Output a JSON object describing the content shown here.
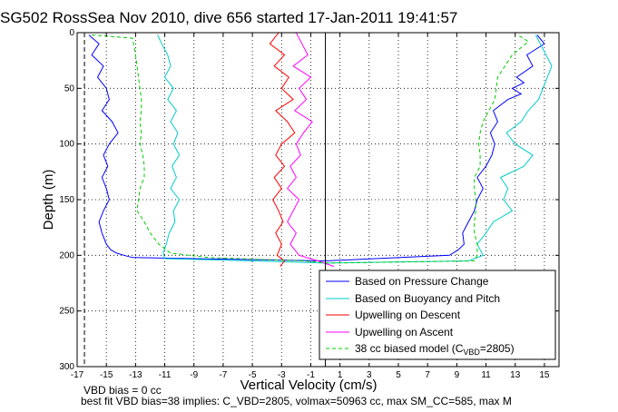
{
  "chart_data": {
    "type": "line",
    "title": "SG502 RossSea Nov 2010, dive 656 started 17-Jan-2011 19:41:57",
    "xlabel": "Vertical Velocity (cm/s)",
    "ylabel": "Depth (m)",
    "xlim": [
      -17,
      16
    ],
    "ylim": [
      300,
      0
    ],
    "x_ticks": [
      -17,
      -15,
      -13,
      -11,
      -9,
      -7,
      -5,
      -3,
      -1,
      1,
      3,
      5,
      7,
      9,
      11,
      13,
      15
    ],
    "y_ticks": [
      0,
      50,
      100,
      150,
      200,
      250,
      300
    ],
    "x_tick_labels": [
      "-17",
      "-15",
      "-13",
      "-11",
      "-9",
      "-7",
      "-5",
      "-3",
      "-1",
      "1",
      "3",
      "5",
      "7",
      "9",
      "11",
      "13",
      "15"
    ],
    "y_tick_labels": [
      "0",
      "50",
      "100",
      "150",
      "200",
      "250",
      "300"
    ],
    "grid": true,
    "legend_position": "bottom-right",
    "legend": [
      "Based on Pressure Change",
      "Based on Buoyancy and Pitch",
      "Upwelling on Descent",
      "Upwelling on Ascent",
      "38 cc biased model (C",
      "VBD",
      "=2805)"
    ],
    "series": [
      {
        "color": "#0000ff",
        "x": [
          -16.2,
          -15.5,
          -16.0,
          -15.2,
          -15.6,
          -15.0,
          -14.8,
          -15.3,
          -14.6,
          -14.2,
          -14.8,
          -15.2,
          -14.9,
          -15.3,
          -15.0,
          -14.8,
          -15.2,
          -15.5,
          -15.3,
          -15.0,
          -14.7,
          -14.3,
          -13.8,
          -13.2,
          0.0,
          8.5,
          9.1,
          9.5,
          9.4,
          9.8,
          10.2,
          10.4,
          10.8,
          10.4,
          11.0,
          11.4,
          11.6,
          11.3,
          11.8,
          11.5,
          12.5,
          13.4,
          12.8,
          13.6,
          13.1,
          14.2,
          13.8,
          15.0,
          14.5
        ],
        "y": [
          2,
          10,
          20,
          30,
          40,
          50,
          60,
          70,
          80,
          90,
          100,
          110,
          120,
          130,
          140,
          150,
          160,
          170,
          180,
          190,
          195,
          198,
          200,
          202,
          205,
          200,
          195,
          190,
          180,
          170,
          160,
          150,
          140,
          130,
          120,
          110,
          100,
          90,
          80,
          70,
          60,
          55,
          50,
          45,
          40,
          30,
          20,
          10,
          2
        ]
      },
      {
        "color": "#00cccc",
        "x": [
          -11.5,
          -11.2,
          -10.8,
          -10.6,
          -11.0,
          -10.4,
          -10.8,
          -10.2,
          -10.6,
          -10.1,
          -10.4,
          -10.0,
          -10.5,
          -10.2,
          -10.6,
          -10.0,
          -10.4,
          -10.3,
          -10.7,
          -10.9,
          -11.1,
          -11.0,
          -5.0,
          0.0,
          9.8,
          10.8,
          10.4,
          11.0,
          11.5,
          12.8,
          12.2,
          12.5,
          12.0,
          13.6,
          14.2,
          13.0,
          12.4,
          13.4,
          13.9,
          14.6,
          15.5,
          14.4
        ],
        "y": [
          2,
          10,
          20,
          30,
          40,
          50,
          60,
          70,
          80,
          90,
          100,
          110,
          120,
          130,
          140,
          150,
          160,
          170,
          180,
          190,
          198,
          203,
          205,
          207,
          205,
          200,
          190,
          180,
          170,
          160,
          150,
          140,
          130,
          120,
          110,
          100,
          90,
          80,
          70,
          60,
          30,
          2
        ]
      },
      {
        "color": "#ff0000",
        "x": [
          -3.2,
          -3.8,
          -2.8,
          -3.5,
          -2.5,
          -3.0,
          -2.2,
          -3.4,
          -2.6,
          -2.1,
          -3.0,
          -3.4,
          -2.8,
          -3.5,
          -3.0,
          -3.6,
          -3.2,
          -2.9,
          -3.4,
          -3.0,
          -3.3,
          -2.8,
          -3.1
        ],
        "y": [
          0,
          10,
          20,
          30,
          40,
          50,
          60,
          70,
          80,
          90,
          100,
          110,
          120,
          130,
          140,
          150,
          160,
          170,
          180,
          190,
          200,
          205,
          210
        ]
      },
      {
        "color": "#ff00ff",
        "x": [
          -2.0,
          -1.6,
          -1.2,
          -2.2,
          -1.0,
          -1.8,
          -1.3,
          -2.1,
          -0.9,
          -1.5,
          -2.0,
          -1.7,
          -2.4,
          -2.0,
          -2.6,
          -1.8,
          -2.2,
          -2.6,
          -2.0,
          -2.4,
          -1.8,
          -0.5,
          0.6
        ],
        "y": [
          0,
          10,
          20,
          30,
          40,
          50,
          60,
          70,
          80,
          90,
          100,
          110,
          120,
          130,
          140,
          150,
          160,
          170,
          180,
          190,
          200,
          205,
          210
        ]
      },
      {
        "color": "#00cc00",
        "dashed": true,
        "x": [
          -16.0,
          -13.2,
          -13.0,
          -12.8,
          -12.6,
          -12.6,
          -12.7,
          -12.6,
          -12.7,
          -12.5,
          -12.4,
          -12.4,
          -12.7,
          -12.8,
          -12.9,
          -12.4,
          -12.0,
          -11.4,
          -10.6,
          -8.0,
          -1.5,
          0.2,
          10.2,
          10.4,
          10.4,
          10.2,
          10.2,
          10.3,
          10.3,
          10.2,
          10.2,
          10.6,
          10.6,
          10.5,
          10.6,
          10.8,
          11.6,
          11.8,
          12.8,
          13.9,
          13.2
        ],
        "y": [
          2,
          5,
          20,
          40,
          60,
          70,
          80,
          90,
          100,
          110,
          120,
          130,
          140,
          150,
          160,
          170,
          180,
          190,
          198,
          202,
          205,
          207,
          205,
          200,
          190,
          180,
          170,
          160,
          150,
          140,
          130,
          120,
          110,
          100,
          90,
          80,
          60,
          40,
          20,
          8,
          2
        ]
      }
    ],
    "footnotes": [
      "VBD bias = 0 cc",
      "best fit VBD bias=38 implies: C_VBD=2805, volmax=50963 cc, max SM_CC=585, max M"
    ]
  }
}
